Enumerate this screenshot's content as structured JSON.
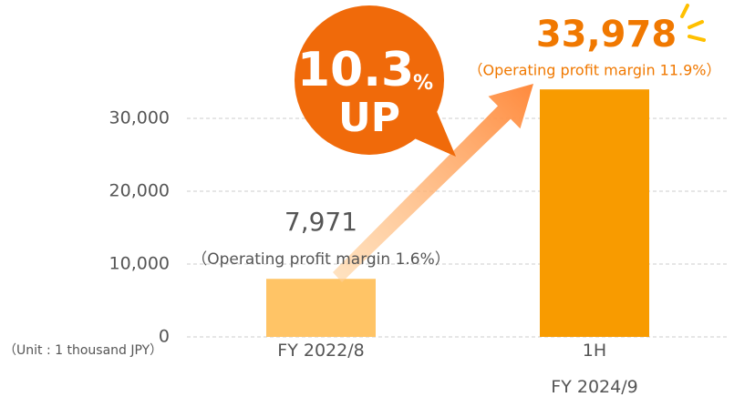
{
  "chart_data": {
    "type": "bar",
    "categories": [
      "FY 2022/8",
      "1H\nFY 2024/9"
    ],
    "values": [
      7971,
      33978
    ],
    "value_labels": [
      "7,971",
      "33,978"
    ],
    "colors": [
      "#ffc466",
      "#f89b00"
    ],
    "annotations": [
      "（Operating profit margin 1.6%）",
      "（Operating profit margin 11.9%）"
    ],
    "callout": {
      "value": "10.3",
      "unit": "%",
      "text": "UP"
    },
    "unit_note": "（Unit : 1 thousand JPY）",
    "ylim": [
      0,
      35000
    ],
    "yticks": [
      0,
      {
        "value": 10000,
        "label": "10,000"
      },
      {
        "value": 20000,
        "label": "20,000"
      },
      {
        "value": 30000,
        "label": "30,000"
      }
    ],
    "grid": true
  }
}
